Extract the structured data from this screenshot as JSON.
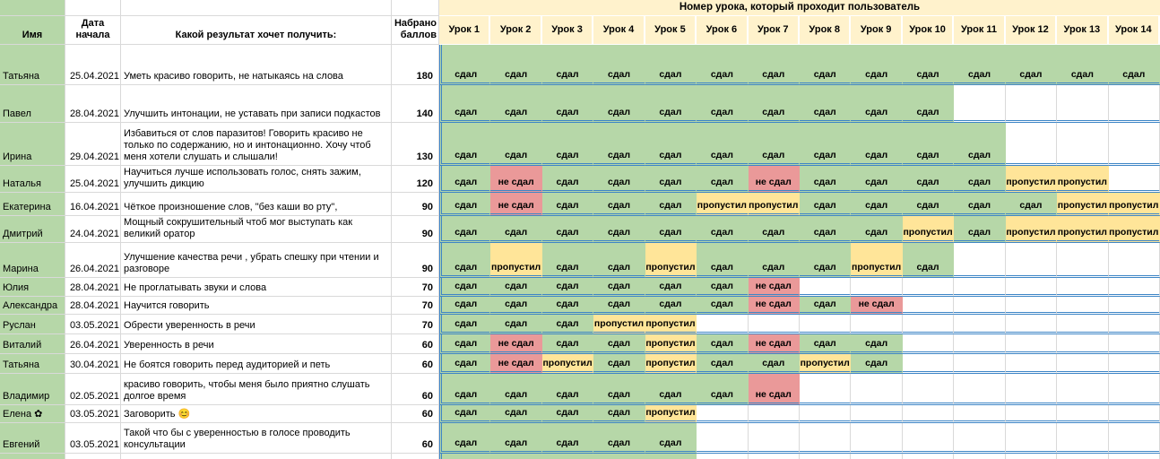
{
  "title": "Номер урока, который проходит пользователь",
  "columns": {
    "name": "Имя",
    "date": "Дата начала",
    "goal": "Какой результат хочет получить:",
    "points": "Набрано баллов"
  },
  "lessons": [
    "Урок 1",
    "Урок 2",
    "Урок 3",
    "Урок 4",
    "Урок 5",
    "Урок 6",
    "Урок 7",
    "Урок 8",
    "Урок 9",
    "Урок 10",
    "Урок 11",
    "Урок 12",
    "Урок 13",
    "Урок 14"
  ],
  "status_labels": {
    "passed": "сдал",
    "failed": "не сдал",
    "skipped": "пропустил"
  },
  "colors": {
    "pass_bg": "#b6d7a8",
    "fail_bg": "#ea9999",
    "skip_bg": "#ffe599",
    "lesson_header_bg": "#fff2cc",
    "name_col_bg": "#b6d7a8",
    "row_divider_blue": "#3d85c6",
    "gridline": "#d9d9d9"
  },
  "rows": [
    {
      "name": "Татьяна",
      "date": "25.04.2021",
      "goal": "Уметь красиво говорить, не натыкаясь на слова",
      "points": "180",
      "statuses": [
        "сдал",
        "сдал",
        "сдал",
        "сдал",
        "сдал",
        "сдал",
        "сдал",
        "сдал",
        "сдал",
        "сдал",
        "сдал",
        "сдал",
        "сдал",
        "сдал"
      ]
    },
    {
      "name": "Павел",
      "date": "28.04.2021",
      "goal": "Улучшить интонации, не уставать при записи подкастов",
      "points": "140",
      "statuses": [
        "сдал",
        "сдал",
        "сдал",
        "сдал",
        "сдал",
        "сдал",
        "сдал",
        "сдал",
        "сдал",
        "сдал",
        "",
        "",
        "",
        ""
      ]
    },
    {
      "name": "Ирина",
      "date": "29.04.2021",
      "goal": "Избавиться от слов паразитов! Говорить красиво не только по содержанию, но и интонационно. Хочу чтоб меня хотели слушать и слышали!",
      "points": "130",
      "statuses": [
        "сдал",
        "сдал",
        "сдал",
        "сдал",
        "сдал",
        "сдал",
        "сдал",
        "сдал",
        "сдал",
        "сдал",
        "сдал",
        "",
        "",
        ""
      ]
    },
    {
      "name": "Наталья",
      "date": "25.04.2021",
      "goal": "Научиться лучше использовать голос, снять зажим, улучшить дикцию",
      "points": "120",
      "statuses": [
        "сдал",
        "не сдал",
        "сдал",
        "сдал",
        "сдал",
        "сдал",
        "не сдал",
        "сдал",
        "сдал",
        "сдал",
        "сдал",
        "пропустил",
        "пропустил",
        ""
      ]
    },
    {
      "name": "Екатерина",
      "date": "16.04.2021",
      "goal": "Чёткое произношение слов, \"без каши во рту\",",
      "points": "90",
      "statuses": [
        "сдал",
        "не сдал",
        "сдал",
        "сдал",
        "сдал",
        "пропустил",
        "пропустил",
        "сдал",
        "сдал",
        "сдал",
        "сдал",
        "сдал",
        "пропустил",
        "пропустил"
      ]
    },
    {
      "name": "Дмитрий",
      "date": "24.04.2021",
      "goal": "Мощный сокрушительный чтоб мог выступать как великий оратор",
      "points": "90",
      "statuses": [
        "сдал",
        "сдал",
        "сдал",
        "сдал",
        "сдал",
        "сдал",
        "сдал",
        "сдал",
        "сдал",
        "пропустил",
        "сдал",
        "пропустил",
        "пропустил",
        "пропустил"
      ]
    },
    {
      "name": "Марина",
      "date": "26.04.2021",
      "goal": "Улучшение качества речи , убрать спешку при чтении и разговоре",
      "points": "90",
      "statuses": [
        "сдал",
        "пропустил",
        "сдал",
        "сдал",
        "пропустил",
        "сдал",
        "сдал",
        "сдал",
        "пропустил",
        "сдал",
        "",
        "",
        "",
        ""
      ]
    },
    {
      "name": "Юлия",
      "date": "28.04.2021",
      "goal": "Не проглатывать звуки и слова",
      "points": "70",
      "statuses": [
        "сдал",
        "сдал",
        "сдал",
        "сдал",
        "сдал",
        "сдал",
        "не сдал",
        "",
        "",
        "",
        "",
        "",
        "",
        ""
      ]
    },
    {
      "name": "Александра",
      "date": "28.04.2021",
      "goal": "Научится говорить",
      "points": "70",
      "statuses": [
        "сдал",
        "сдал",
        "сдал",
        "сдал",
        "сдал",
        "сдал",
        "не сдал",
        "сдал",
        "не сдал",
        "",
        "",
        "",
        "",
        ""
      ]
    },
    {
      "name": "Руслан",
      "date": "03.05.2021",
      "goal": "Обрести уверенность в речи",
      "points": "70",
      "statuses": [
        "сдал",
        "сдал",
        "сдал",
        "пропустил",
        "пропустил",
        "",
        "",
        "",
        "",
        "",
        "",
        "",
        "",
        ""
      ]
    },
    {
      "name": "Виталий",
      "date": "26.04.2021",
      "goal": "Уверенность в речи",
      "points": "60",
      "statuses": [
        "сдал",
        "не сдал",
        "сдал",
        "сдал",
        "пропустил",
        "сдал",
        "не сдал",
        "сдал",
        "сдал",
        "",
        "",
        "",
        "",
        ""
      ]
    },
    {
      "name": "Татьяна",
      "date": "30.04.2021",
      "goal": "Не боятся говорить перед аудиторией и петь",
      "points": "60",
      "statuses": [
        "сдал",
        "не сдал",
        "пропустил",
        "сдал",
        "пропустил",
        "сдал",
        "сдал",
        "пропустил",
        "сдал",
        "",
        "",
        "",
        "",
        ""
      ]
    },
    {
      "name": "Владимир",
      "date": "02.05.2021",
      "goal": "красиво говорить, чтобы меня было приятно слушать долгое время",
      "points": "60",
      "statuses": [
        "сдал",
        "сдал",
        "сдал",
        "сдал",
        "сдал",
        "сдал",
        "не сдал",
        "",
        "",
        "",
        "",
        "",
        "",
        ""
      ]
    },
    {
      "name": "Елена ✿",
      "date": "03.05.2021",
      "goal": "Заговорить 😊",
      "points": "60",
      "statuses": [
        "сдал",
        "сдал",
        "сдал",
        "сдал",
        "пропустил",
        "",
        "",
        "",
        "",
        "",
        "",
        "",
        "",
        ""
      ]
    },
    {
      "name": "Евгений",
      "date": "03.05.2021",
      "goal": "Такой что бы с уверенностью в голосе проводить консультации",
      "points": "60",
      "statuses": [
        "сдал",
        "сдал",
        "сдал",
        "сдал",
        "сдал",
        "",
        "",
        "",
        "",
        "",
        "",
        "",
        "",
        ""
      ]
    }
  ],
  "partial_row": {
    "name_filled": true,
    "lessons_filled": 5
  }
}
